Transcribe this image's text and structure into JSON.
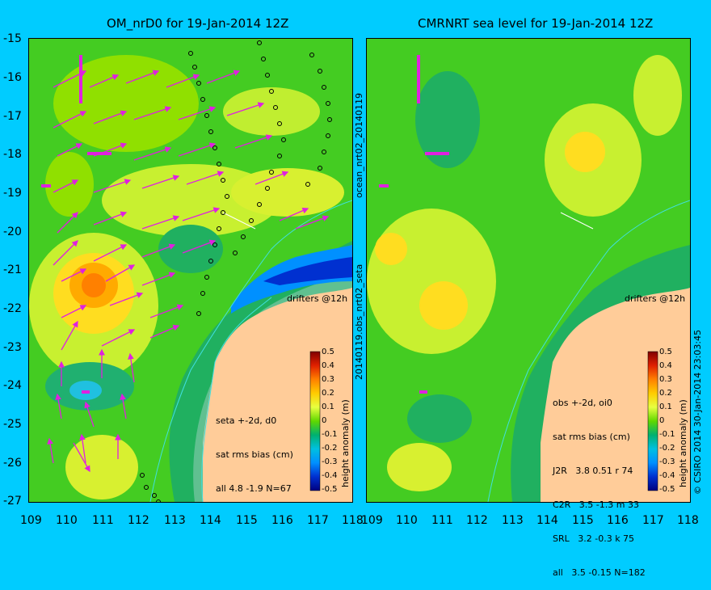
{
  "titles": {
    "left": "OM_nrD0 for 19-Jan-2014 12Z",
    "right": "CMRNRT sea level  for 19-Jan-2014 12Z"
  },
  "axes": {
    "y_ticks": [
      "-15",
      "-16",
      "-17",
      "-18",
      "-19",
      "-20",
      "-21",
      "-22",
      "-23",
      "-24",
      "-25",
      "-26",
      "-27"
    ],
    "x_ticks": [
      "109",
      "110",
      "111",
      "112",
      "113",
      "114",
      "115",
      "116",
      "117",
      "118"
    ]
  },
  "side_labels": {
    "mid_top": "ocean_nrt02_20140119",
    "mid_bottom": "20140119.obs_nrt02_seta",
    "right": "© CSIRO 2014   30-Jan-2014 23:03:45"
  },
  "left_panel": {
    "drifters": "drifters @12h",
    "note_lines": [
      "seta +-2d, d0",
      "sat rms bias (cm)",
      "all 4.8 -1.9 N=67"
    ]
  },
  "right_panel": {
    "drifters": "drifters @12h",
    "note_lines": [
      "obs +-2d, oi0",
      "sat rms bias (cm)",
      "J2R   3.8 0.51 r 74",
      "C2R   3.5 -1.3 m 33",
      "SRL   3.2 -0.3 k 75",
      "all   3.5 -0.15 N=182"
    ]
  },
  "colorbar": {
    "label": "height anomaly (m)",
    "ticks": [
      "0.5",
      "0.4",
      "0.3",
      "0.2",
      "0.1",
      "0",
      "-0.1",
      "-0.2",
      "-0.3",
      "-0.4",
      "-0.5"
    ]
  },
  "colors": {
    "background": "#00ccff",
    "land": "#ffcc99",
    "arrows": "#e020e0",
    "coast": "#40e0e0"
  }
}
